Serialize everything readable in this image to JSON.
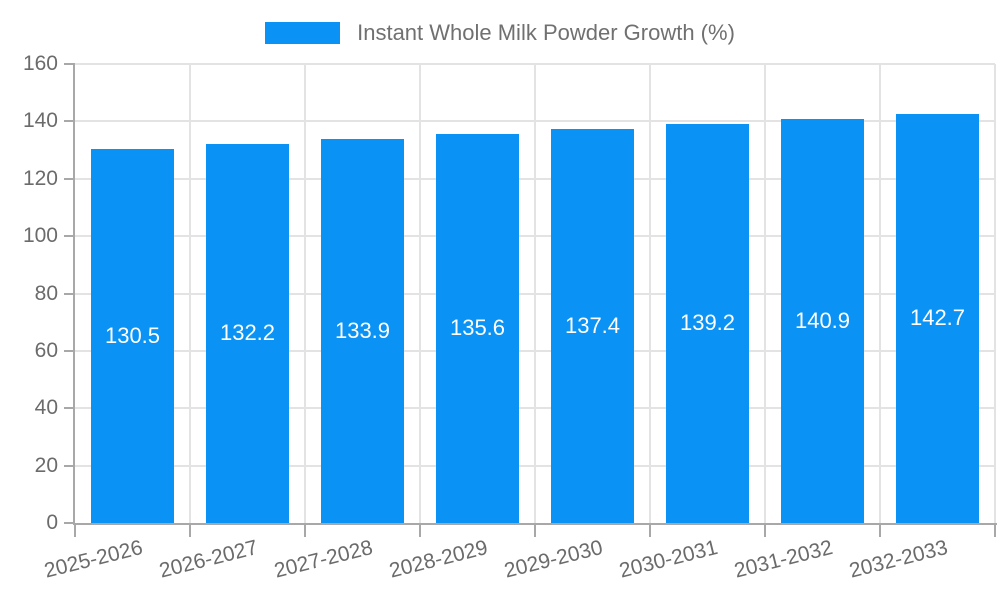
{
  "legend": {
    "label": "Instant Whole Milk Powder Growth (%)"
  },
  "chart_data": {
    "type": "bar",
    "title": "Instant Whole Milk Powder Growth (%)",
    "categories": [
      "2025-2026",
      "2026-2027",
      "2027-2028",
      "2028-2029",
      "2029-2030",
      "2030-2031",
      "2031-2032",
      "2032-2033"
    ],
    "series": [
      {
        "name": "Instant Whole Milk Powder Growth (%)",
        "values": [
          130.5,
          132.2,
          133.9,
          135.6,
          137.4,
          139.2,
          140.9,
          142.7
        ]
      }
    ],
    "value_labels": [
      "130.5",
      "132.2",
      "133.9",
      "135.6",
      "137.4",
      "139.2",
      "140.9",
      "142.7"
    ],
    "xlabel": "",
    "ylabel": "",
    "ylim": [
      0,
      160
    ],
    "yticks": [
      0,
      20,
      40,
      60,
      80,
      100,
      120,
      140,
      160
    ],
    "grid": "horizontal-and-vertical",
    "legend_position": "top-center",
    "bar_color": "#0a92f5",
    "value_label_color": "#ffffff"
  }
}
